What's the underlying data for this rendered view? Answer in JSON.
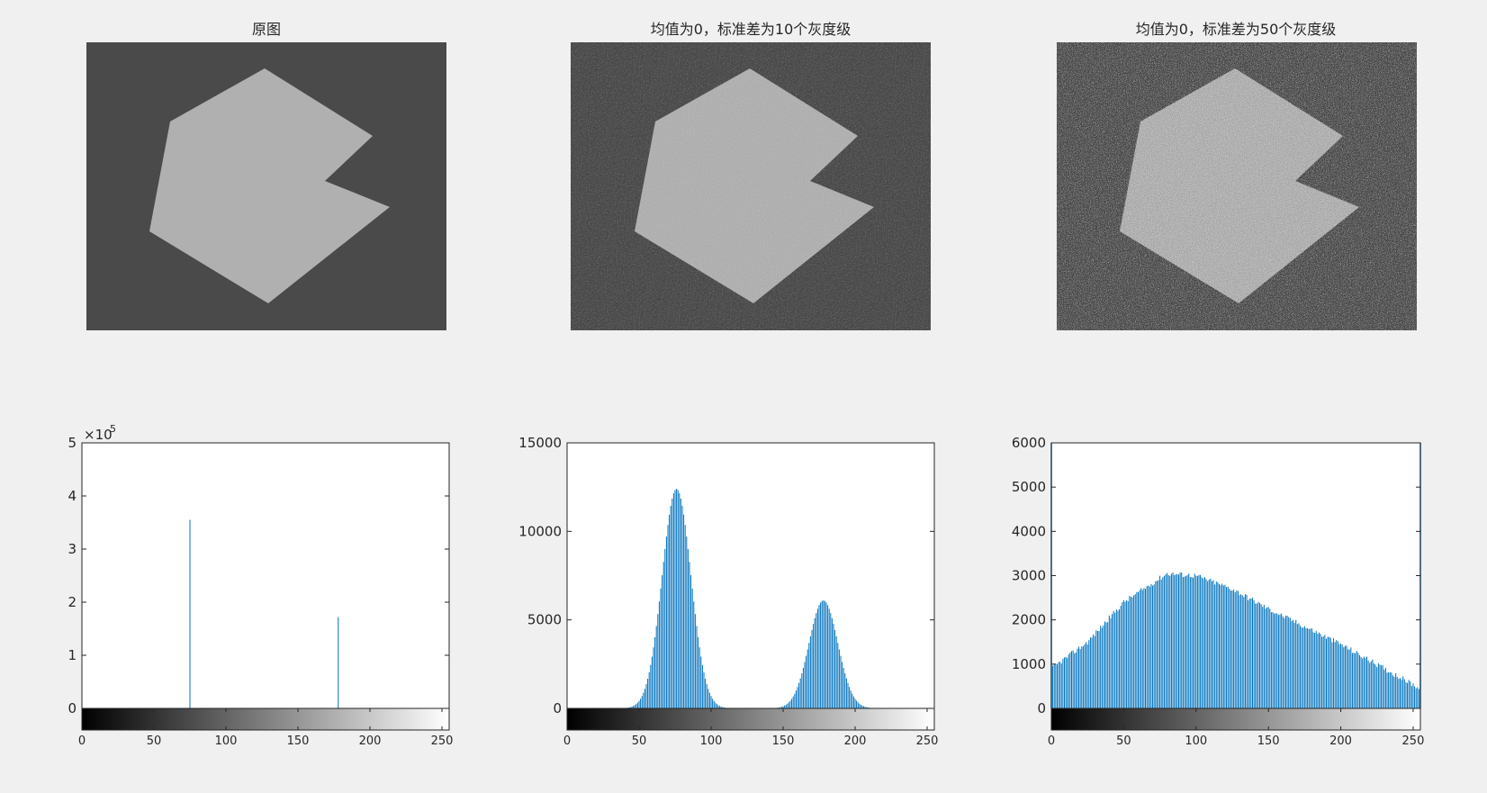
{
  "figure": {
    "images": [
      {
        "title": "原图"
      },
      {
        "title": "均值为0，标准差为10个灰度级"
      },
      {
        "title": "均值为0，标准差为50个灰度级"
      }
    ]
  },
  "colors": {
    "background": "#f0f0f0",
    "bar": "#0072bd",
    "image_bg": "#4a4a4a",
    "image_shape": "#b0b0b0"
  },
  "chart_data": [
    {
      "type": "bar",
      "title": "",
      "xlim": [
        0,
        255
      ],
      "ylim": [
        0,
        500000
      ],
      "y_tick_labels": [
        "0",
        "1",
        "2",
        "3",
        "4",
        "5"
      ],
      "y_ticks": [
        0,
        100000,
        200000,
        300000,
        400000,
        500000
      ],
      "y_exponent_label": "×10",
      "y_exponent_power": "5",
      "x_ticks": [
        0,
        50,
        100,
        150,
        200,
        250
      ],
      "x_tick_labels": [
        "0",
        "50",
        "100",
        "150",
        "200",
        "250"
      ],
      "colorbar": "gray",
      "bars": [
        {
          "x": 75,
          "y": 355000
        },
        {
          "x": 178,
          "y": 172000
        }
      ]
    },
    {
      "type": "bar",
      "title": "",
      "xlim": [
        0,
        255
      ],
      "ylim": [
        0,
        15000
      ],
      "y_ticks": [
        0,
        5000,
        10000,
        15000
      ],
      "y_tick_labels": [
        "0",
        "5000",
        "10000",
        "15000"
      ],
      "x_ticks": [
        0,
        50,
        100,
        150,
        200,
        250
      ],
      "x_tick_labels": [
        "0",
        "50",
        "100",
        "150",
        "200",
        "250"
      ],
      "colorbar": "gray",
      "peaks": [
        {
          "center": 76,
          "height": 12400,
          "sigma": 10
        },
        {
          "center": 178,
          "height": 6100,
          "sigma": 10
        }
      ]
    },
    {
      "type": "bar",
      "title": "",
      "xlim": [
        0,
        255
      ],
      "ylim": [
        0,
        6000
      ],
      "y_ticks": [
        0,
        1000,
        2000,
        3000,
        4000,
        5000,
        6000
      ],
      "y_tick_labels": [
        "0",
        "1000",
        "2000",
        "3000",
        "4000",
        "5000",
        "6000"
      ],
      "x_ticks": [
        0,
        50,
        100,
        150,
        200,
        250
      ],
      "x_tick_labels": [
        "0",
        "50",
        "100",
        "150",
        "200",
        "250"
      ],
      "colorbar": "gray",
      "edge_spikes": [
        {
          "x": 0,
          "y": 6000
        },
        {
          "x": 255,
          "y": 6000
        }
      ],
      "values_sampled": [
        {
          "x": 0,
          "y": 900
        },
        {
          "x": 25,
          "y": 1500
        },
        {
          "x": 50,
          "y": 2400
        },
        {
          "x": 80,
          "y": 3050
        },
        {
          "x": 100,
          "y": 3000
        },
        {
          "x": 125,
          "y": 2700
        },
        {
          "x": 150,
          "y": 2250
        },
        {
          "x": 175,
          "y": 1850
        },
        {
          "x": 200,
          "y": 1450
        },
        {
          "x": 230,
          "y": 900
        },
        {
          "x": 255,
          "y": 450
        }
      ]
    }
  ]
}
